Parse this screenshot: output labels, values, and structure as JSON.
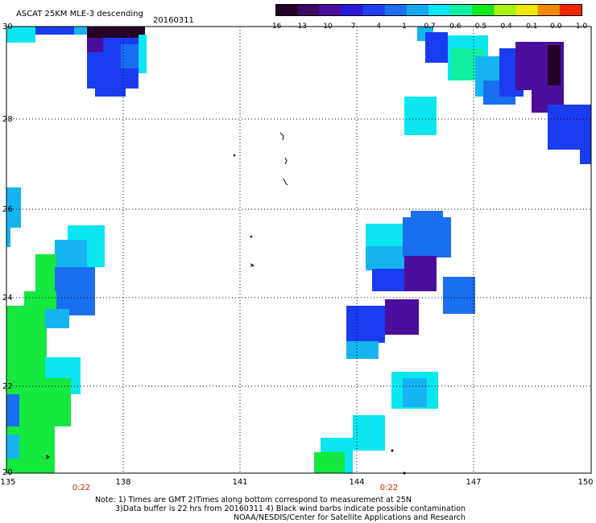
{
  "header": {
    "title": "ASCAT 25KM MLE-3 descending",
    "date": "20160311"
  },
  "colorbar": {
    "ticks": [
      "-16",
      "-13",
      "-10",
      "-7",
      "-4",
      "-1",
      "-0.7",
      "-0.6",
      "-0.5",
      "-0.4",
      "-0.1",
      "0.0",
      "1.0"
    ],
    "colors": [
      "#250026",
      "#3a0a62",
      "#4b0d9c",
      "#2a1ad8",
      "#1d3ff0",
      "#1a6ef0",
      "#15aaf0",
      "#0ce6f0",
      "#10f0a0",
      "#16e820",
      "#a8f010",
      "#f0e800",
      "#f08a00",
      "#f02800"
    ]
  },
  "axes": {
    "x_ticks": [
      "135",
      "138",
      "141",
      "144",
      "147",
      "150"
    ],
    "y_ticks": [
      "30",
      "28",
      "26",
      "24",
      "22",
      "20"
    ],
    "time_labels": [
      "0:22",
      "0:22"
    ]
  },
  "notes": {
    "line1": "Note: 1) Times are GMT 2)Times along bottom correspond to measurement at 25N",
    "line2": "3)Data buffer is 22 hrs from 20160311 4) Black wind barbs indicate possible contamination",
    "line3": "NOAA/NESDIS/Center for Satellite Applications and Research"
  },
  "colors": {
    "deep_purple": "#250026",
    "purple": "#4b0d9c",
    "blue": "#1a3cf0",
    "medium_blue": "#1a6ef0",
    "sky_blue": "#15b4f0",
    "cyan": "#0ce6f0",
    "green": "#16e840",
    "red_label": "#cc2200"
  }
}
